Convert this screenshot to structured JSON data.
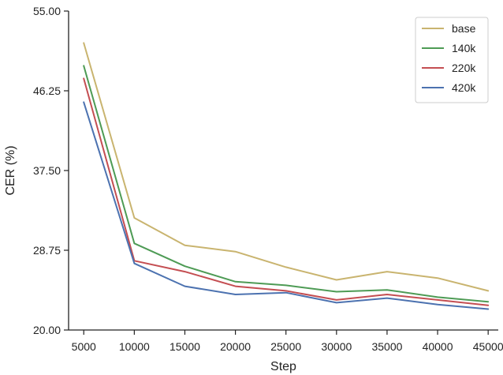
{
  "chart_data": {
    "type": "line",
    "title": "",
    "xlabel": "Step",
    "ylabel": "CER (%)",
    "x": [
      5000,
      10000,
      15000,
      20000,
      25000,
      30000,
      35000,
      40000,
      45000
    ],
    "xticks": [
      "5000",
      "10000",
      "15000",
      "20000",
      "25000",
      "30000",
      "35000",
      "40000",
      "45000"
    ],
    "xlim": [
      3500,
      46000
    ],
    "ylim": [
      20.0,
      55.0
    ],
    "yticks": [
      "20.00",
      "28.75",
      "37.50",
      "46.25",
      "55.00"
    ],
    "yticks_values": [
      20.0,
      28.75,
      37.5,
      46.25,
      55.0
    ],
    "grid": false,
    "legend": {
      "placement": "top-right",
      "framed": true
    },
    "series": [
      {
        "name": "base",
        "color": "#c9b46f",
        "values": [
          51.5,
          32.3,
          29.3,
          28.6,
          26.9,
          25.5,
          26.4,
          25.7,
          24.3
        ]
      },
      {
        "name": "140k",
        "color": "#4e9b55",
        "values": [
          49.0,
          29.5,
          27.0,
          25.3,
          24.9,
          24.2,
          24.4,
          23.6,
          23.1
        ]
      },
      {
        "name": "220k",
        "color": "#c44e52",
        "values": [
          47.6,
          27.6,
          26.4,
          24.8,
          24.3,
          23.3,
          23.9,
          23.3,
          22.7
        ]
      },
      {
        "name": "420k",
        "color": "#4c72b0",
        "values": [
          45.0,
          27.3,
          24.8,
          23.9,
          24.1,
          23.0,
          23.5,
          22.8,
          22.3
        ]
      }
    ]
  }
}
